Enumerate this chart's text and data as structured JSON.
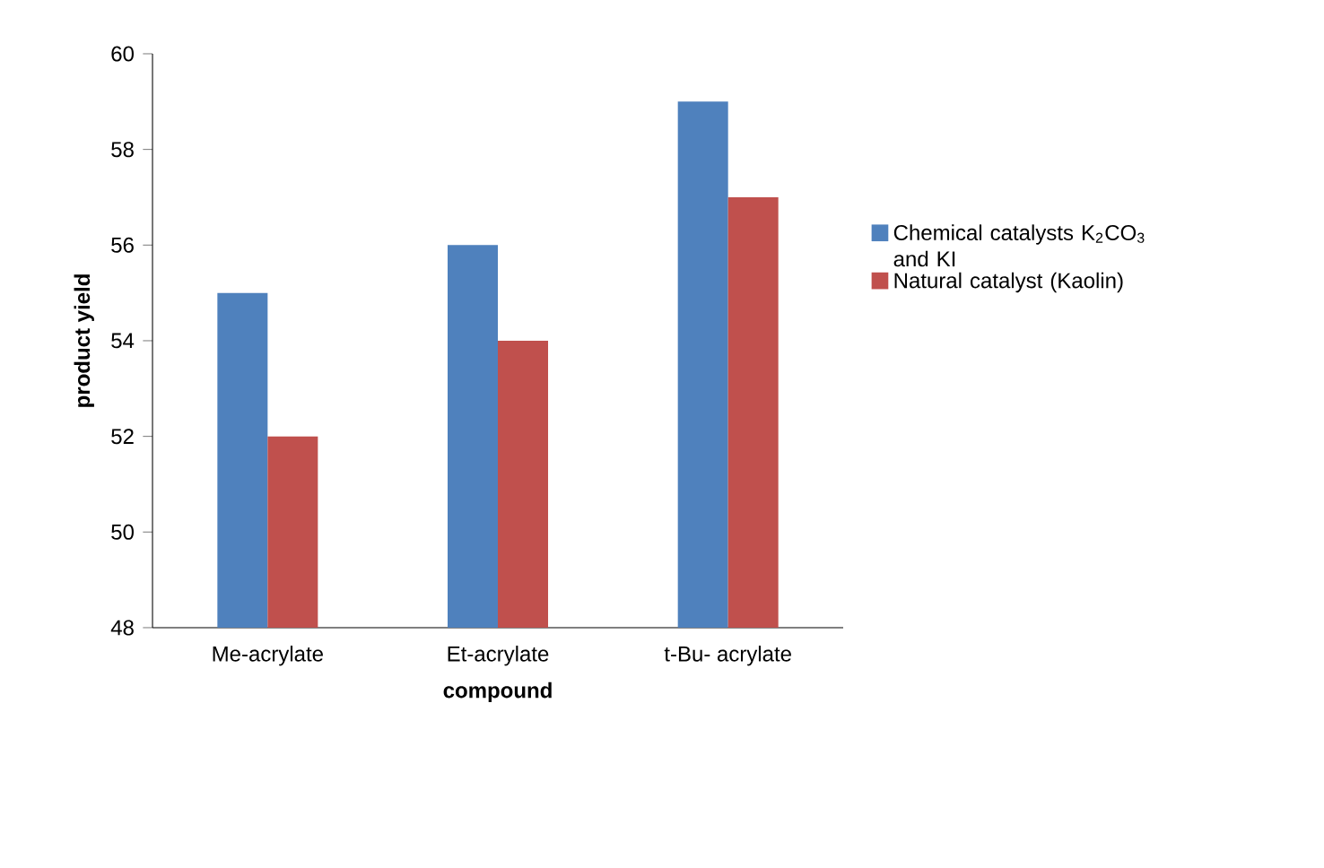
{
  "chart_data": {
    "type": "bar",
    "categories": [
      "Me-acrylate",
      "Et-acrylate",
      "t-Bu- acrylate"
    ],
    "series": [
      {
        "name": "Chemical  catalysts K$_{2}$CO$_{3}$ and KI",
        "color": "#4f81bd",
        "values": [
          55,
          56,
          59
        ]
      },
      {
        "name": "Natural catalyst (Kaolin)",
        "color": "#c0504d",
        "values": [
          52,
          54,
          57
        ]
      }
    ],
    "xlabel": "compound",
    "ylabel": "product yield",
    "ylim": [
      48,
      60
    ],
    "yticks": [
      48,
      50,
      52,
      54,
      56,
      58,
      60
    ],
    "legend": "right"
  }
}
